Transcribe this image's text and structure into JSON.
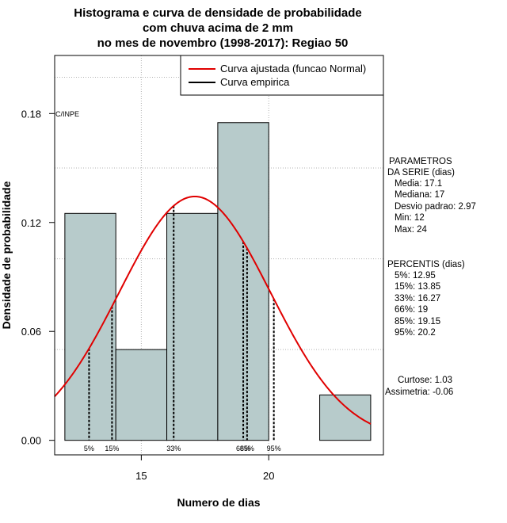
{
  "chart_data": {
    "type": "histogram",
    "title_lines": [
      "Histograma e curva de densidade de probabilidade",
      "com chuva acima de 2 mm",
      "no mes de novembro (1998-2017): Regiao 50"
    ],
    "xlabel": "Numero de dias",
    "ylabel": "Densidade de probabilidade",
    "xlim": [
      11.6,
      24.5
    ],
    "ylim": [
      -0.008,
      0.212
    ],
    "x_ticks": [
      15,
      20
    ],
    "y_ticks": [
      0.0,
      0.06,
      0.12,
      0.18
    ],
    "y_tick_labels": [
      "0.00",
      "0.06",
      "0.12",
      "0.18"
    ],
    "grid_y": [
      0.05,
      0.1,
      0.15,
      0.2
    ],
    "grid_x": [
      15,
      20
    ],
    "bins": [
      {
        "from": 12,
        "to": 14,
        "density": 0.125
      },
      {
        "from": 14,
        "to": 16,
        "density": 0.05
      },
      {
        "from": 16,
        "to": 18,
        "density": 0.125
      },
      {
        "from": 18,
        "to": 20,
        "density": 0.175
      },
      {
        "from": 20,
        "to": 22,
        "density": 0.0
      },
      {
        "from": 22,
        "to": 24,
        "density": 0.025
      }
    ],
    "normal_fit": {
      "mean": 17.1,
      "sd": 2.97,
      "color": "#e00000"
    },
    "percentile_lines": [
      {
        "label": "5%",
        "x": 12.95
      },
      {
        "label": "15%",
        "x": 13.85
      },
      {
        "label": "33%",
        "x": 16.27
      },
      {
        "label": "66%",
        "x": 19
      },
      {
        "label": "85%",
        "x": 19.15
      },
      {
        "label": "95%",
        "x": 20.2
      }
    ],
    "percentile_tag_text": [
      "5%",
      "15%",
      "33%",
      "66%",
      "85%",
      "95%"
    ],
    "bar_color": "#b7cbcb",
    "watermark": "C/INPE",
    "legend": {
      "position": "top-right",
      "entries": [
        {
          "label": "Curva ajustada (funcao Normal)",
          "color": "#e00000"
        },
        {
          "label": "Curva empirica",
          "color": "#000000"
        }
      ]
    }
  },
  "side_panel": {
    "params_title": [
      "PARAMETROS",
      "DA SERIE (dias)"
    ],
    "params": [
      "Media: 17.1",
      "Mediana: 17",
      "Desvio padrao: 2.97",
      "Min: 12",
      "Max: 24"
    ],
    "percentis_title": "PERCENTIS (dias)",
    "percentis": [
      "5%: 12.95",
      "15%: 13.85",
      "33%: 16.27",
      "66%: 19",
      "85%: 19.15",
      "95%: 20.2"
    ],
    "stats": [
      "Curtose: 1.03",
      "Assimetria: -0.06"
    ]
  }
}
